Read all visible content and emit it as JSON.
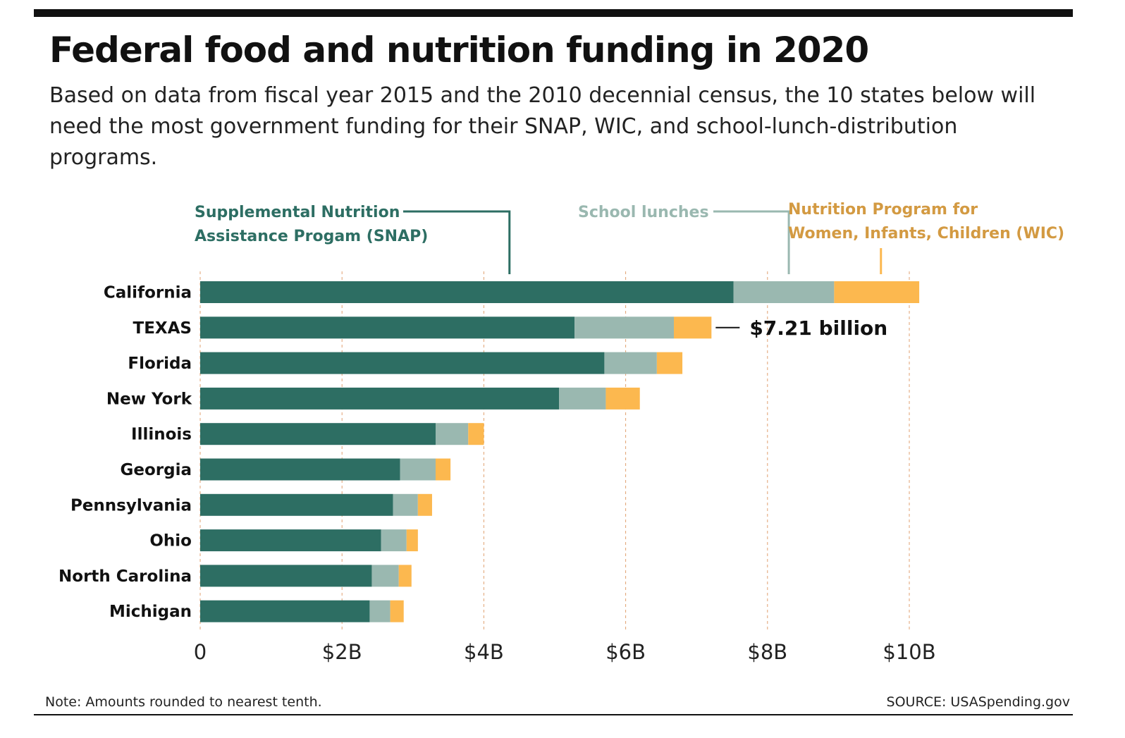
{
  "title": "Federal food and nutrition funding in 2020",
  "subtitle": "Based on data from fiscal year 2015 and the 2010 decennial census, the 10 states below will need the most government funding for their SNAP, WIC, and school-lunch-distribution programs.",
  "note": "Note: Amounts rounded  to nearest tenth.",
  "source": "SOURCE: USASpending.gov",
  "colors": {
    "snap": "#2d6e63",
    "school": "#9ab8b0",
    "wic": "#fcb84f",
    "legend_wic_text": "#d39a42",
    "grid": "#e0a070"
  },
  "chart_data": {
    "type": "bar",
    "orientation": "horizontal",
    "stacked": true,
    "categories": [
      "California",
      "TEXAS",
      "Florida",
      "New York",
      "Illinois",
      "Georgia",
      "Pennsylvania",
      "Ohio",
      "North Carolina",
      "Michigan"
    ],
    "series": [
      {
        "name": "Supplemental Nutrition Assistance Progam (SNAP)",
        "legend_lines": [
          "Supplemental Nutrition",
          "Assistance Progam (SNAP)"
        ],
        "values": [
          7.52,
          5.28,
          5.7,
          5.06,
          3.32,
          2.82,
          2.72,
          2.55,
          2.42,
          2.39
        ]
      },
      {
        "name": "School lunches",
        "legend_lines": [
          "School lunches"
        ],
        "values": [
          1.42,
          1.4,
          0.74,
          0.66,
          0.46,
          0.5,
          0.35,
          0.36,
          0.38,
          0.29
        ]
      },
      {
        "name": "Nutrition Program for Women, Infants, Children (WIC)",
        "legend_lines": [
          "Nutrition Program for",
          "Women, Infants, Children (WIC)"
        ],
        "values": [
          1.2,
          0.53,
          0.36,
          0.48,
          0.22,
          0.21,
          0.2,
          0.16,
          0.18,
          0.19
        ]
      }
    ],
    "x_ticks": [
      "0",
      "$2B",
      "$4B",
      "$6B",
      "$8B",
      "$10B"
    ],
    "xlim": [
      0,
      10
    ],
    "grid": true,
    "annotation": {
      "category": "TEXAS",
      "text": "$7.21 billion"
    }
  }
}
